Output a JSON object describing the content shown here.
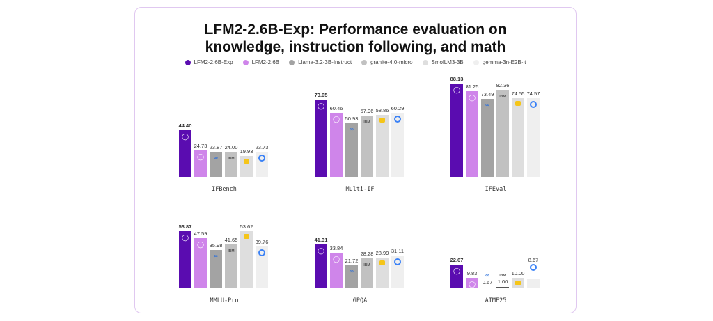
{
  "chart_data": {
    "type": "bar",
    "title": "LFM2-2.6B-Exp: Performance evaluation on knowledge, instruction following, and math",
    "title_lines": [
      "LFM2-2.6B-Exp: Performance evaluation on",
      "knowledge, instruction following, and math"
    ],
    "series": [
      {
        "name": "LFM2-2.6B-Exp",
        "color": "#5a0cb0",
        "icon": "liquid-drop-icon"
      },
      {
        "name": "LFM2-2.6B",
        "color": "#cf85ea",
        "icon": "liquid-drop-icon"
      },
      {
        "name": "Llama-3.2-3B-Instruct",
        "color": "#a3a3a3",
        "icon": "meta-logo-icon"
      },
      {
        "name": "granite-4.0-micro",
        "color": "#c1c1c1",
        "icon": "ibm-logo-icon"
      },
      {
        "name": "SmolLM3-3B",
        "color": "#dedede",
        "icon": "smol-face-icon"
      },
      {
        "name": "gemma-3n-E2B-it",
        "color": "#efefef",
        "icon": "gemma-logo-icon"
      }
    ],
    "benchmarks": [
      {
        "name": "IFBench",
        "values": [
          "44.40",
          "24.73",
          "23.87",
          "24.00",
          "19.93",
          "23.73"
        ]
      },
      {
        "name": "Multi-IF",
        "values": [
          "73.05",
          "60.46",
          "50.93",
          "57.96",
          "58.86",
          "60.29"
        ]
      },
      {
        "name": "IFEval",
        "values": [
          "88.13",
          "81.25",
          "73.49",
          "82.36",
          "74.55",
          "74.57"
        ]
      },
      {
        "name": "MMLU-Pro",
        "values": [
          "53.87",
          "47.59",
          "35.98",
          "41.65",
          "53.62",
          "39.76"
        ]
      },
      {
        "name": "GPQA",
        "values": [
          "41.31",
          "33.84",
          "21.72",
          "28.28",
          "28.99",
          "31.11"
        ]
      },
      {
        "name": "AIME25",
        "values": [
          "22.67",
          "9.83",
          "0.67",
          "1.00",
          "10.00",
          "8.67"
        ]
      }
    ],
    "legend_position": "top-center",
    "grid": false
  }
}
